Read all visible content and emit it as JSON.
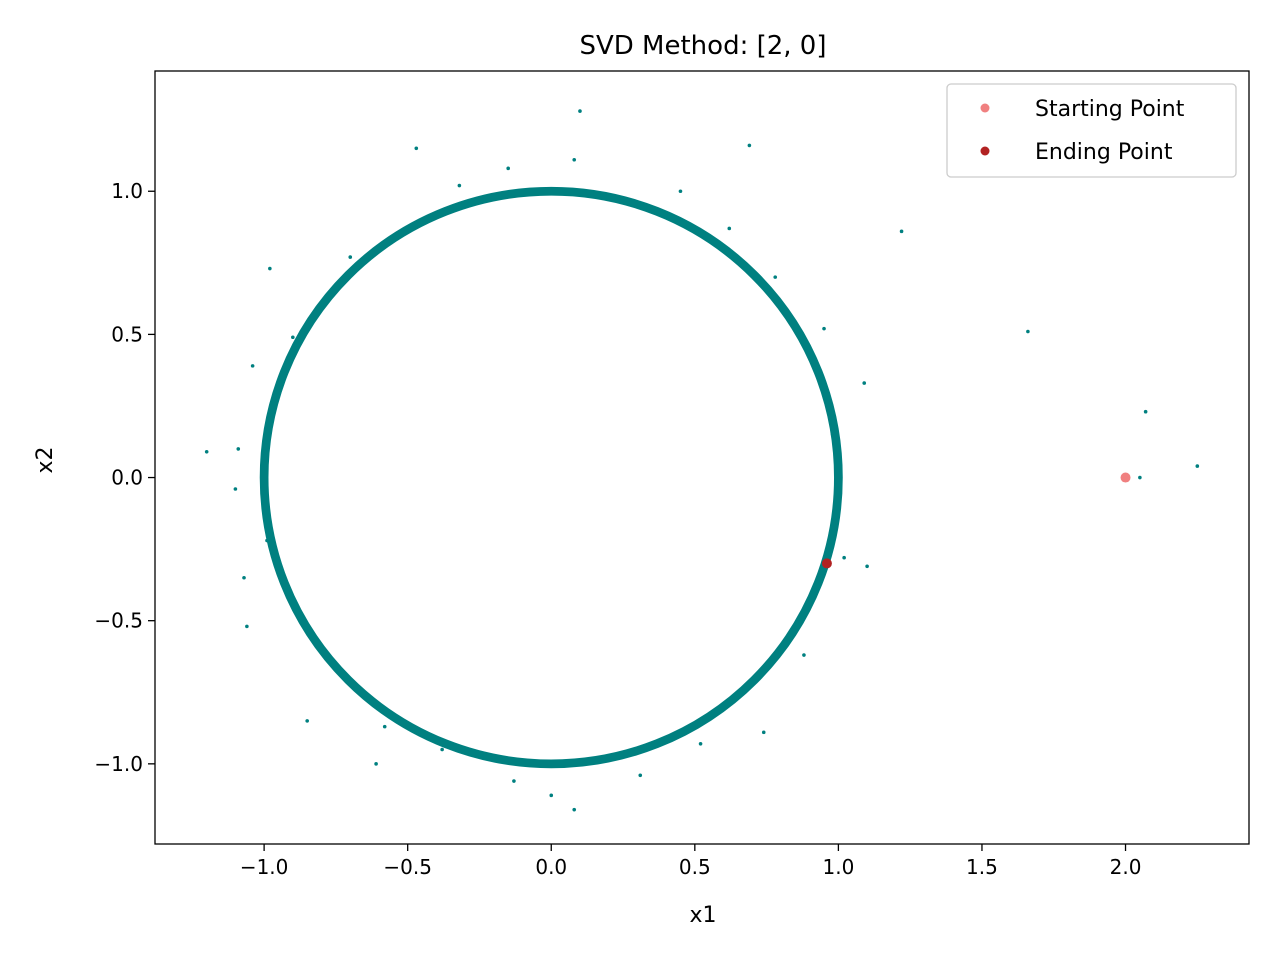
{
  "chart_data": {
    "type": "scatter",
    "title": "SVD Method: [2, 0]",
    "xlabel": "x1",
    "ylabel": "x2",
    "xlim": [
      -1.38,
      2.43
    ],
    "ylim": [
      -1.28,
      1.42
    ],
    "xticks": [
      -1.0,
      -0.5,
      0.0,
      0.5,
      1.0,
      1.5,
      2.0
    ],
    "yticks": [
      -1.0,
      -0.5,
      0.0,
      0.5,
      1.0
    ],
    "xtick_labels": [
      "−1.0",
      "−0.5",
      "0.0",
      "0.5",
      "1.0",
      "1.5",
      "2.0"
    ],
    "ytick_labels": [
      "−1.0",
      "−0.5",
      "0.0",
      "0.5",
      "1.0"
    ],
    "grid": false,
    "legend_position": "top-right",
    "series": [
      {
        "kind": "trajectory",
        "color": "#008080",
        "ring_radius": 1.0,
        "ring_spread": 0.02,
        "points": [
          [
            0.1,
            1.28
          ],
          [
            0.69,
            1.16
          ],
          [
            -0.47,
            1.15
          ],
          [
            0.08,
            1.11
          ],
          [
            -0.15,
            1.08
          ],
          [
            1.22,
            0.86
          ],
          [
            -0.98,
            0.73
          ],
          [
            1.66,
            0.51
          ],
          [
            -1.04,
            0.39
          ],
          [
            1.09,
            0.33
          ],
          [
            2.07,
            0.23
          ],
          [
            -1.2,
            0.09
          ],
          [
            2.25,
            0.04
          ],
          [
            2.05,
            0.0
          ],
          [
            -1.09,
            0.1
          ],
          [
            -1.1,
            -0.04
          ],
          [
            -1.07,
            -0.35
          ],
          [
            1.1,
            -0.31
          ],
          [
            -1.06,
            -0.52
          ],
          [
            1.02,
            -0.28
          ],
          [
            0.74,
            -0.89
          ],
          [
            -0.61,
            -1.0
          ],
          [
            0.08,
            -1.16
          ],
          [
            0.0,
            -1.11
          ],
          [
            -0.13,
            -1.06
          ],
          [
            -0.38,
            -0.95
          ],
          [
            0.31,
            -1.04
          ],
          [
            -0.85,
            -0.85
          ],
          [
            0.88,
            -0.62
          ],
          [
            0.95,
            0.52
          ],
          [
            0.62,
            0.87
          ],
          [
            -0.7,
            0.77
          ],
          [
            0.45,
            1.0
          ],
          [
            -0.32,
            1.02
          ],
          [
            0.98,
            0.15
          ],
          [
            -0.99,
            -0.22
          ],
          [
            0.52,
            -0.93
          ],
          [
            -0.58,
            -0.87
          ],
          [
            0.78,
            0.7
          ],
          [
            -0.9,
            0.49
          ]
        ]
      },
      {
        "name": "Starting Point",
        "color": "#f08080",
        "x": 2.0,
        "y": 0.0
      },
      {
        "name": "Ending Point",
        "color": "#b22222",
        "x": 0.96,
        "y": -0.3
      }
    ]
  }
}
